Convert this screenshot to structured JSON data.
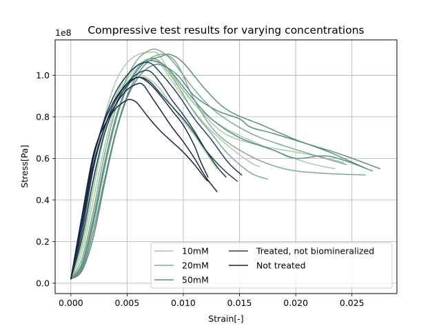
{
  "chart_data": {
    "type": "line",
    "title": "Compressive test results for varying concentrations",
    "xlabel": "Strain[-]",
    "ylabel": "Stress[Pa]",
    "y_offset_label": "1e8",
    "xlim": [
      -0.0014,
      0.029
    ],
    "ylim": [
      -0.05,
      1.17
    ],
    "xticks": [
      0.0,
      0.005,
      0.01,
      0.015,
      0.02,
      0.025
    ],
    "xtick_labels": [
      "0.000",
      "0.005",
      "0.010",
      "0.015",
      "0.020",
      "0.025"
    ],
    "yticks": [
      0.0,
      0.2,
      0.4,
      0.6,
      0.8,
      1.0
    ],
    "ytick_labels": [
      "0.0",
      "0.2",
      "0.4",
      "0.6",
      "0.8",
      "1.0"
    ],
    "grid": true,
    "legend_placement": "lower-right",
    "series": [
      {
        "name": "10mM",
        "color": "#a9cba5",
        "show_in_legend": true,
        "x": [
          0.0,
          0.001,
          0.002,
          0.003,
          0.004,
          0.005,
          0.006,
          0.007,
          0.0078,
          0.009,
          0.011,
          0.013,
          0.015,
          0.018,
          0.021,
          0.0235
        ],
        "y": [
          0.02,
          0.25,
          0.55,
          0.8,
          0.97,
          1.06,
          1.1,
          1.11,
          1.1,
          1.0,
          0.86,
          0.77,
          0.71,
          0.64,
          0.58,
          0.55
        ]
      },
      {
        "name": "10mM",
        "color": "#a9cba5",
        "show_in_legend": false,
        "x": [
          0.0,
          0.001,
          0.002,
          0.003,
          0.004,
          0.005,
          0.006,
          0.007,
          0.008,
          0.009,
          0.0105,
          0.012,
          0.014,
          0.016,
          0.0168
        ],
        "y": [
          0.02,
          0.18,
          0.45,
          0.72,
          0.9,
          1.0,
          1.05,
          1.07,
          1.05,
          0.97,
          0.86,
          0.76,
          0.66,
          0.58,
          0.56
        ]
      },
      {
        "name": "10mM",
        "color": "#a9cba5",
        "show_in_legend": false,
        "x": [
          0.0,
          0.001,
          0.002,
          0.003,
          0.004,
          0.005,
          0.006,
          0.0072,
          0.0085,
          0.01,
          0.012,
          0.014,
          0.017,
          0.02,
          0.022,
          0.0243
        ],
        "y": [
          0.02,
          0.15,
          0.4,
          0.66,
          0.86,
          0.98,
          1.05,
          1.08,
          1.04,
          0.93,
          0.8,
          0.71,
          0.66,
          0.63,
          0.61,
          0.58
        ]
      },
      {
        "name": "10mM",
        "color": "#a9cba5",
        "show_in_legend": false,
        "x": [
          0.0,
          0.001,
          0.002,
          0.003,
          0.004,
          0.005,
          0.006,
          0.007,
          0.008,
          0.009,
          0.01,
          0.011,
          0.012,
          0.013
        ],
        "y": [
          0.02,
          0.2,
          0.48,
          0.74,
          0.9,
          0.97,
          1.0,
          0.98,
          0.93,
          0.85,
          0.78,
          0.71,
          0.63,
          0.55
        ]
      },
      {
        "name": "20mM",
        "color": "#7daa8f",
        "show_in_legend": true,
        "x": [
          0.0,
          0.001,
          0.002,
          0.003,
          0.004,
          0.005,
          0.006,
          0.007,
          0.0078,
          0.009,
          0.011,
          0.013,
          0.016,
          0.019,
          0.022,
          0.0245
        ],
        "y": [
          0.02,
          0.12,
          0.35,
          0.62,
          0.84,
          0.99,
          1.08,
          1.12,
          1.12,
          1.07,
          0.93,
          0.82,
          0.72,
          0.66,
          0.61,
          0.57
        ]
      },
      {
        "name": "20mM",
        "color": "#7daa8f",
        "show_in_legend": false,
        "x": [
          0.0,
          0.001,
          0.002,
          0.003,
          0.004,
          0.005,
          0.006,
          0.007,
          0.008,
          0.0095,
          0.011,
          0.0125,
          0.014,
          0.016,
          0.0175
        ],
        "y": [
          0.02,
          0.1,
          0.32,
          0.58,
          0.8,
          0.95,
          1.04,
          1.08,
          1.06,
          0.95,
          0.82,
          0.72,
          0.62,
          0.53,
          0.5
        ]
      },
      {
        "name": "20mM",
        "color": "#7daa8f",
        "show_in_legend": false,
        "x": [
          0.0,
          0.001,
          0.002,
          0.003,
          0.004,
          0.005,
          0.006,
          0.007,
          0.0083,
          0.0095,
          0.011,
          0.013,
          0.016,
          0.019,
          0.022,
          0.0262
        ],
        "y": [
          0.02,
          0.08,
          0.28,
          0.55,
          0.78,
          0.94,
          1.03,
          1.08,
          1.1,
          1.05,
          0.88,
          0.72,
          0.61,
          0.55,
          0.53,
          0.52
        ]
      },
      {
        "name": "50mM",
        "color": "#5b8c86",
        "show_in_legend": true,
        "x": [
          0.0,
          0.001,
          0.002,
          0.003,
          0.004,
          0.005,
          0.006,
          0.007,
          0.008,
          0.0088,
          0.01,
          0.012,
          0.014,
          0.017,
          0.02,
          0.023,
          0.0263
        ],
        "y": [
          0.02,
          0.07,
          0.25,
          0.5,
          0.73,
          0.9,
          1.01,
          1.07,
          1.09,
          1.1,
          1.06,
          0.93,
          0.83,
          0.76,
          0.69,
          0.63,
          0.55
        ]
      },
      {
        "name": "50mM",
        "color": "#5b8c86",
        "show_in_legend": false,
        "x": [
          0.0,
          0.001,
          0.002,
          0.003,
          0.004,
          0.005,
          0.006,
          0.007,
          0.008,
          0.0095,
          0.011,
          0.013,
          0.015,
          0.016,
          0.018,
          0.021,
          0.024,
          0.0275
        ],
        "y": [
          0.02,
          0.06,
          0.22,
          0.48,
          0.72,
          0.89,
          0.99,
          1.04,
          1.05,
          1.0,
          0.9,
          0.83,
          0.79,
          0.75,
          0.72,
          0.67,
          0.62,
          0.55
        ]
      },
      {
        "name": "50mM",
        "color": "#5b8c86",
        "show_in_legend": false,
        "x": [
          0.0,
          0.001,
          0.002,
          0.003,
          0.004,
          0.005,
          0.006,
          0.007,
          0.0085,
          0.0105,
          0.0125,
          0.015,
          0.018,
          0.02,
          0.023,
          0.0268
        ],
        "y": [
          0.02,
          0.09,
          0.3,
          0.57,
          0.79,
          0.94,
          1.03,
          1.07,
          1.04,
          0.91,
          0.79,
          0.7,
          0.64,
          0.6,
          0.61,
          0.54
        ]
      },
      {
        "name": "Treated, not biomineralized",
        "color": "#1e3f5a",
        "show_in_legend": true,
        "x": [
          0.0,
          0.001,
          0.002,
          0.003,
          0.004,
          0.005,
          0.006,
          0.007,
          0.008,
          0.0095,
          0.011,
          0.0125,
          0.014,
          0.0152
        ],
        "y": [
          0.02,
          0.3,
          0.6,
          0.79,
          0.92,
          1.0,
          1.05,
          1.06,
          1.01,
          0.91,
          0.79,
          0.69,
          0.58,
          0.52
        ]
      },
      {
        "name": "Treated, not biomineralized",
        "color": "#1e3f5a",
        "show_in_legend": false,
        "x": [
          0.0,
          0.001,
          0.002,
          0.003,
          0.004,
          0.005,
          0.006,
          0.007,
          0.008,
          0.009,
          0.01,
          0.011,
          0.012,
          0.013,
          0.0138
        ],
        "y": [
          0.02,
          0.25,
          0.55,
          0.75,
          0.88,
          0.96,
          1.01,
          1.02,
          0.96,
          0.88,
          0.81,
          0.73,
          0.64,
          0.56,
          0.51
        ]
      },
      {
        "name": "Treated, not biomineralized",
        "color": "#1e3f5a",
        "show_in_legend": false,
        "x": [
          0.0,
          0.001,
          0.002,
          0.003,
          0.004,
          0.005,
          0.006,
          0.007,
          0.008,
          0.009,
          0.01,
          0.011,
          0.012,
          0.0135,
          0.0148
        ],
        "y": [
          0.02,
          0.22,
          0.5,
          0.72,
          0.86,
          0.95,
          0.99,
          0.97,
          0.91,
          0.85,
          0.79,
          0.72,
          0.64,
          0.55,
          0.49
        ]
      },
      {
        "name": "Not treated",
        "color": "#16263d",
        "show_in_legend": true,
        "x": [
          0.0,
          0.001,
          0.002,
          0.003,
          0.004,
          0.005,
          0.0055,
          0.006,
          0.007,
          0.008,
          0.009,
          0.01,
          0.011,
          0.012,
          0.0123
        ],
        "y": [
          0.02,
          0.33,
          0.62,
          0.76,
          0.84,
          0.88,
          0.88,
          0.86,
          0.79,
          0.73,
          0.68,
          0.63,
          0.57,
          0.5,
          0.49
        ]
      },
      {
        "name": "Not treated",
        "color": "#16263d",
        "show_in_legend": false,
        "x": [
          0.0,
          0.001,
          0.002,
          0.003,
          0.004,
          0.005,
          0.006,
          0.0065,
          0.007,
          0.008,
          0.009,
          0.01,
          0.011,
          0.012,
          0.013
        ],
        "y": [
          0.02,
          0.28,
          0.57,
          0.75,
          0.86,
          0.93,
          0.96,
          0.95,
          0.91,
          0.83,
          0.75,
          0.68,
          0.6,
          0.51,
          0.44
        ]
      },
      {
        "name": "Not treated",
        "color": "#16263d",
        "show_in_legend": false,
        "x": [
          0.0,
          0.001,
          0.002,
          0.003,
          0.004,
          0.005,
          0.006,
          0.007,
          0.008,
          0.009,
          0.01,
          0.011,
          0.0115,
          0.0122
        ],
        "y": [
          0.02,
          0.3,
          0.6,
          0.78,
          0.89,
          0.96,
          0.99,
          0.96,
          0.9,
          0.83,
          0.76,
          0.66,
          0.59,
          0.51
        ]
      }
    ],
    "legend": [
      {
        "label": "10mM",
        "color": "#a9cba5"
      },
      {
        "label": "20mM",
        "color": "#7daa8f"
      },
      {
        "label": "50mM",
        "color": "#5b8c86"
      },
      {
        "label": "Treated, not biomineralized",
        "color": "#1e3f5a"
      },
      {
        "label": "Not treated",
        "color": "#16263d"
      }
    ]
  }
}
